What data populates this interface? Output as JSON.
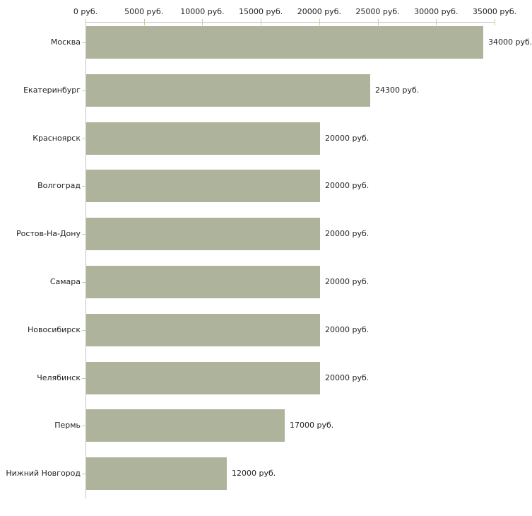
{
  "chart_data": {
    "type": "bar",
    "orientation": "horizontal",
    "title": "",
    "xlabel": "",
    "ylabel": "",
    "unit": "руб.",
    "categories": [
      "Москва",
      "Екатеринбург",
      "Красноярск",
      "Волгоград",
      "Ростов-На-Дону",
      "Самара",
      "Новосибирск",
      "Челябинск",
      "Пермь",
      "Нижний Новгород"
    ],
    "values": [
      34000,
      24300,
      20000,
      20000,
      20000,
      20000,
      20000,
      20000,
      17000,
      12000
    ],
    "value_labels": [
      "34000 руб.",
      "24300 руб.",
      "20000 руб.",
      "20000 руб.",
      "20000 руб.",
      "20000 руб.",
      "20000 руб.",
      "20000 руб.",
      "17000 руб.",
      "12000 руб."
    ],
    "x_ticks": [
      0,
      5000,
      10000,
      15000,
      20000,
      25000,
      30000,
      35000
    ],
    "x_tick_labels": [
      "0 руб.",
      "5000 руб.",
      "10000 руб.",
      "15000 руб.",
      "20000 руб.",
      "25000 руб.",
      "30000 руб.",
      "35000 руб."
    ],
    "xlim": [
      0,
      35000
    ],
    "axis_position": "top",
    "grid": false,
    "legend": false,
    "colors": {
      "bar": "#aeb49b",
      "axis": "#c6c6c6",
      "tick": "#cccc99",
      "text": "#222222",
      "background": "#ffffff"
    }
  }
}
